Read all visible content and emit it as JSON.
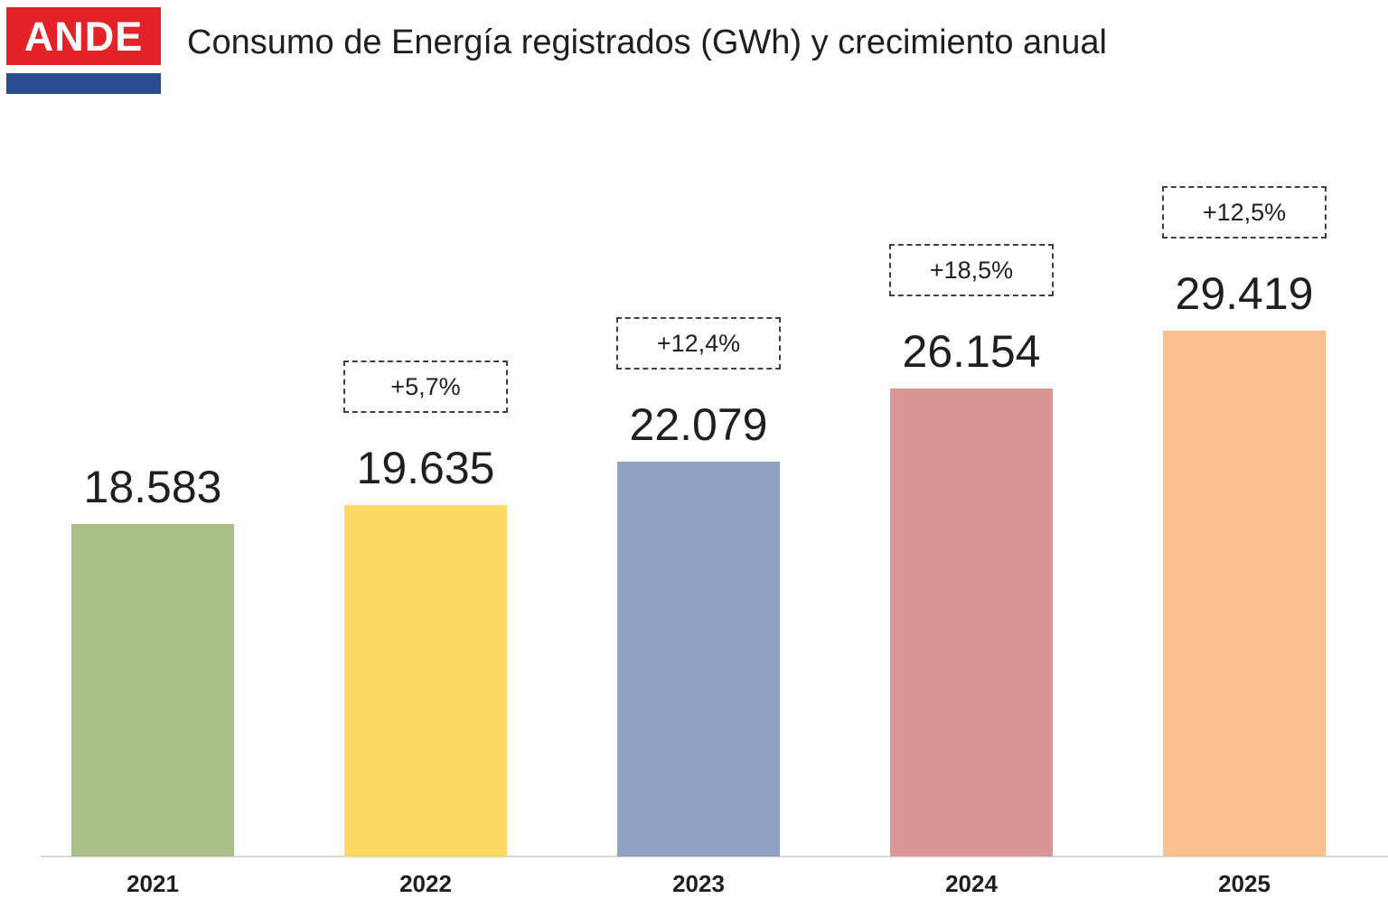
{
  "logo": {
    "text": "ANDE",
    "red_color": "#E32228",
    "blue_color": "#2A4B8D"
  },
  "header": {
    "title": "Consumo de Energía registrados (GWh) y crecimiento anual"
  },
  "chart_data": {
    "type": "bar",
    "title": "Consumo de Energía registrados (GWh) y crecimiento anual",
    "unit": "GWh",
    "categories": [
      "2021",
      "2022",
      "2023",
      "2024",
      "2025"
    ],
    "values": [
      18583,
      19635,
      22079,
      26154,
      29419
    ],
    "value_labels": [
      "18.583",
      "19.635",
      "22.079",
      "26.154",
      "29.419"
    ],
    "growth_labels": [
      null,
      "+5,7%",
      "+12,4%",
      "+18,5%",
      "+12,5%"
    ],
    "bar_colors": [
      "#ABBE88",
      "#FFD966",
      "#8FA2C3",
      "#D99694",
      "#FAC090"
    ],
    "xlabel": "",
    "ylabel": "",
    "ylim": [
      0,
      30500
    ],
    "grid": false,
    "legend": false,
    "annotation_style": "dashed-box",
    "axis_line_color": "#d9d9d9"
  }
}
